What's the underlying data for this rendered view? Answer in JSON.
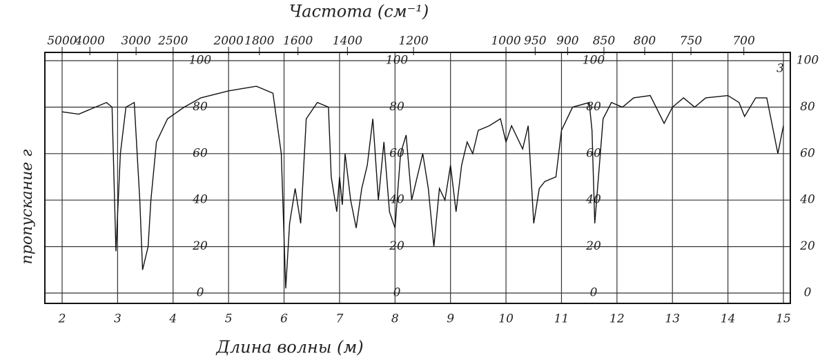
{
  "chart_data": {
    "type": "line",
    "title": "Частота (см⁻¹)",
    "x_label": "Длина волны (м)",
    "y_label": "пропускание г",
    "annotation": "3",
    "color": "#111",
    "grid": true,
    "xlim": [
      2,
      15
    ],
    "ylim": [
      0,
      100
    ],
    "xticks": [
      2,
      3,
      4,
      5,
      6,
      7,
      8,
      9,
      10,
      11,
      12,
      13,
      14,
      15
    ],
    "yticks": [
      0,
      20,
      40,
      60,
      80,
      100
    ],
    "x2ticks": [
      5000,
      4000,
      3000,
      2500,
      2000,
      1800,
      1600,
      1400,
      1200,
      1000,
      950,
      900,
      850,
      800,
      750,
      700
    ],
    "x": [
      2.0,
      2.3,
      2.6,
      2.8,
      2.9,
      2.97,
      3.05,
      3.15,
      3.3,
      3.4,
      3.45,
      3.55,
      3.6,
      3.7,
      3.9,
      4.2,
      4.5,
      5.0,
      5.5,
      5.8,
      5.95,
      6.03,
      6.1,
      6.2,
      6.3,
      6.4,
      6.6,
      6.8,
      6.85,
      6.95,
      7.0,
      7.05,
      7.1,
      7.2,
      7.3,
      7.4,
      7.5,
      7.6,
      7.7,
      7.8,
      7.9,
      8.0,
      8.1,
      8.2,
      8.3,
      8.5,
      8.6,
      8.7,
      8.8,
      8.9,
      9.0,
      9.1,
      9.2,
      9.3,
      9.4,
      9.5,
      9.7,
      9.9,
      10.0,
      10.1,
      10.3,
      10.4,
      10.5,
      10.6,
      10.7,
      10.9,
      11.0,
      11.2,
      11.5,
      11.55,
      11.6,
      11.75,
      11.9,
      12.1,
      12.3,
      12.6,
      12.85,
      13.0,
      13.2,
      13.4,
      13.6,
      14.0,
      14.2,
      14.3,
      14.5,
      14.7,
      14.9,
      15.0
    ],
    "values": [
      78,
      77,
      80,
      82,
      80,
      18,
      60,
      80,
      82,
      40,
      10,
      20,
      40,
      65,
      75,
      80,
      84,
      87,
      89,
      86,
      60,
      2,
      30,
      45,
      30,
      75,
      82,
      80,
      50,
      35,
      50,
      38,
      60,
      40,
      28,
      45,
      55,
      75,
      40,
      65,
      35,
      28,
      60,
      68,
      40,
      60,
      45,
      20,
      45,
      40,
      55,
      35,
      55,
      65,
      60,
      70,
      72,
      75,
      65,
      72,
      62,
      72,
      30,
      45,
      48,
      50,
      70,
      80,
      82,
      70,
      30,
      75,
      82,
      80,
      84,
      85,
      73,
      80,
      84,
      80,
      84,
      85,
      82,
      76,
      84,
      84,
      60,
      72
    ]
  }
}
